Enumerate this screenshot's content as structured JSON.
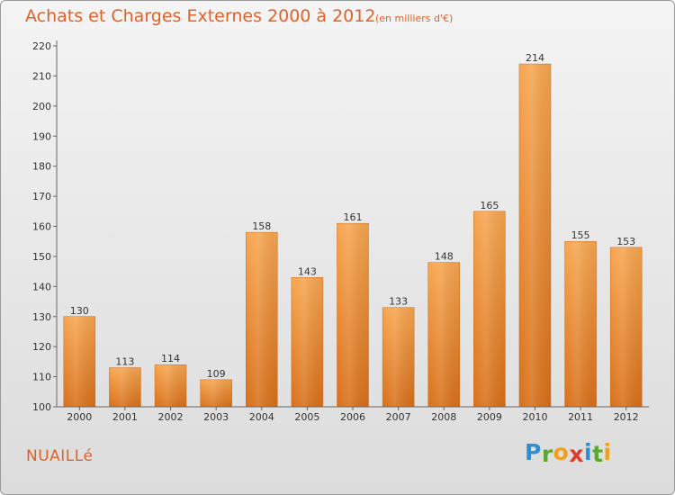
{
  "header": {
    "title": "Achats et Charges Externes 2000 à 2012",
    "subtitle": "(en milliers d'€)"
  },
  "footer": {
    "commune": "NUAILLé",
    "logo_letters": [
      "P",
      "r",
      "o",
      "x",
      "i",
      "t",
      "i"
    ],
    "logo_colors": [
      "#2a8fd6",
      "#5aa832",
      "#f0a020",
      "#e23a2a",
      "#2a8fd6",
      "#5aa832",
      "#f0a020"
    ]
  },
  "chart_data": {
    "type": "bar",
    "categories": [
      "2000",
      "2001",
      "2002",
      "2003",
      "2004",
      "2005",
      "2006",
      "2007",
      "2008",
      "2009",
      "2010",
      "2011",
      "2012"
    ],
    "values": [
      130,
      113,
      114,
      109,
      158,
      143,
      161,
      133,
      148,
      165,
      214,
      155,
      153
    ],
    "title": "Achats et Charges Externes 2000 à 2012",
    "ylim": [
      100,
      220
    ],
    "yticks": [
      100,
      110,
      120,
      130,
      140,
      150,
      160,
      170,
      180,
      190,
      200,
      210,
      220
    ],
    "grid": false,
    "colors": {
      "bar_light": "#f7a650",
      "bar_dark": "#d9701a",
      "text": "#333333",
      "axis": "#666666"
    }
  }
}
